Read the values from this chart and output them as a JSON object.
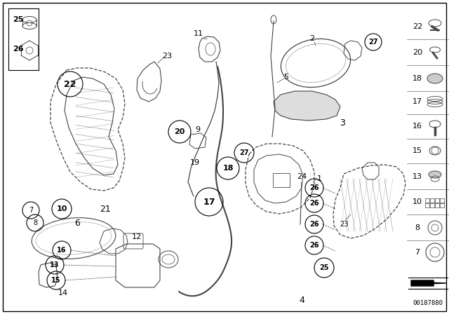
{
  "bg_color": "#ffffff",
  "part_number": "00187880",
  "fig_width": 6.4,
  "fig_height": 4.48,
  "dpi": 100,
  "gray": "#444444",
  "black": "#000000"
}
